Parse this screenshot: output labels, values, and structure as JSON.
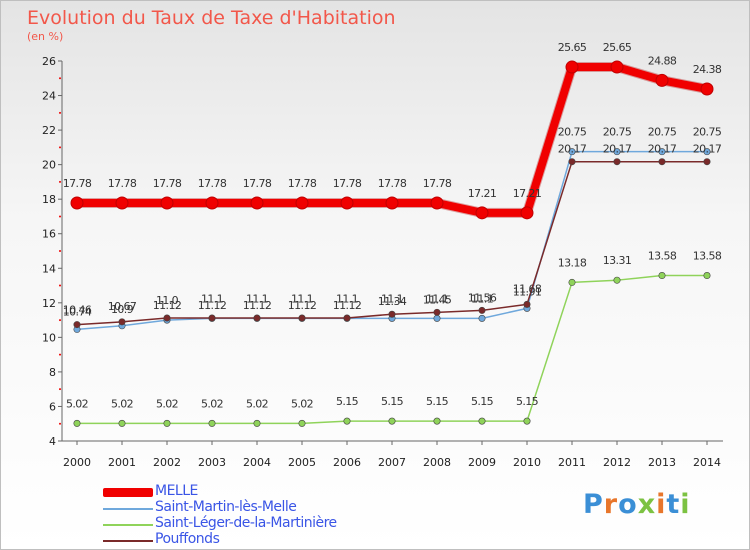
{
  "header": {
    "title": "Evolution du Taux de Taxe d'Habitation",
    "unit": "(en %)"
  },
  "chart_data": {
    "type": "line",
    "title": "Evolution du Taux de Taxe d'Habitation",
    "ylabel": "(en %)",
    "xlabel": "",
    "x": [
      "2000",
      "2001",
      "2002",
      "2003",
      "2004",
      "2005",
      "2006",
      "2007",
      "2008",
      "2009",
      "2010",
      "2011",
      "2012",
      "2013",
      "2014"
    ],
    "ylim": [
      4,
      26
    ],
    "yticks": [
      "4",
      "6",
      "8",
      "10",
      "12",
      "14",
      "16",
      "18",
      "20",
      "22",
      "24",
      "26"
    ],
    "grid": false,
    "legend": "bottom-left",
    "series": [
      {
        "name": "MELLE",
        "color": "#f00000",
        "values": [
          17.78,
          17.78,
          17.78,
          17.78,
          17.78,
          17.78,
          17.78,
          17.78,
          17.78,
          17.21,
          17.21,
          25.65,
          25.65,
          24.88,
          24.38
        ],
        "labels": [
          "17.78",
          "17.78",
          "17.78",
          "17.78",
          "17.78",
          "17.78",
          "17.78",
          "17.78",
          "17.78",
          "17.21",
          "17.21",
          "25.65",
          "25.65",
          "24.88",
          "24.38"
        ]
      },
      {
        "name": "Saint-Martin-lès-Melle",
        "color": "#6fa8dc",
        "values": [
          10.46,
          10.67,
          11.0,
          11.1,
          11.1,
          11.1,
          11.1,
          11.1,
          11.1,
          11.1,
          11.68,
          20.75,
          20.75,
          20.75,
          20.75
        ],
        "labels": [
          "10.46",
          "10.67",
          "11.0",
          "11.1",
          "11.1",
          "11.1",
          "11.1",
          "11.1",
          "11.1",
          "11.1",
          "11.68",
          "20.75",
          "20.75",
          "20.75",
          "20.75"
        ]
      },
      {
        "name": "Saint-Léger-de-la-Martinière",
        "color": "#8fd35a",
        "values": [
          5.02,
          5.02,
          5.02,
          5.02,
          5.02,
          5.02,
          5.15,
          5.15,
          5.15,
          5.15,
          5.15,
          13.18,
          13.31,
          13.58,
          13.58
        ],
        "labels": [
          "5.02",
          "5.02",
          "5.02",
          "5.02",
          "5.02",
          "5.02",
          "5.15",
          "5.15",
          "5.15",
          "5.15",
          "5.15",
          "13.18",
          "13.31",
          "13.58",
          "13.58"
        ]
      },
      {
        "name": "Pouffonds",
        "color": "#7a2a2a",
        "values": [
          10.74,
          10.9,
          11.12,
          11.12,
          11.12,
          11.12,
          11.12,
          11.34,
          11.45,
          11.56,
          11.91,
          20.17,
          20.17,
          20.17,
          20.17
        ],
        "labels": [
          "10.74",
          "10.9",
          "11.12",
          "11.12",
          "11.12",
          "11.12",
          "11.12",
          "11.34",
          "11.45",
          "11.56",
          "11.91",
          "20.17",
          "20.17",
          "20.17",
          "20.17"
        ]
      }
    ]
  },
  "legend": {
    "items": [
      {
        "label": "MELLE",
        "color": "#f00000"
      },
      {
        "label": "Saint-Martin-lès-Melle",
        "color": "#6fa8dc"
      },
      {
        "label": "Saint-Léger-de-la-Martinière",
        "color": "#8fd35a"
      },
      {
        "label": "Pouffonds",
        "color": "#7a2a2a"
      }
    ]
  },
  "logo": {
    "text": "Proxiti",
    "colors": [
      "#3b8fd6",
      "#e8762b",
      "#3b8fd6",
      "#7cc242",
      "#e8762b",
      "#3b8fd6",
      "#7cc242"
    ]
  }
}
